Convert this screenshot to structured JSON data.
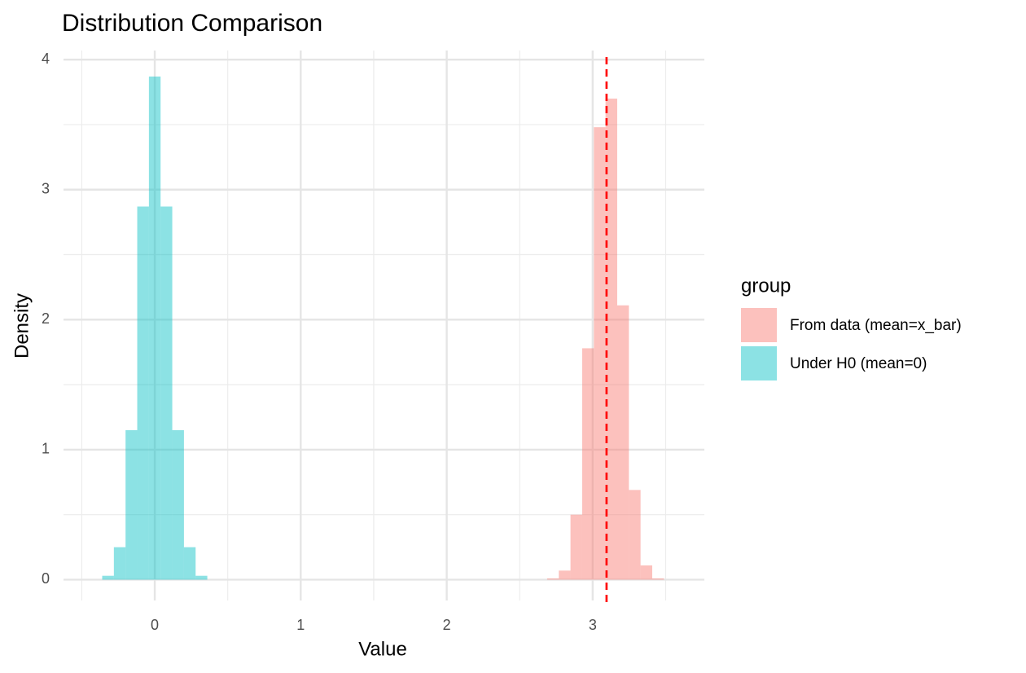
{
  "chart_data": {
    "type": "histogram",
    "title": "Distribution Comparison",
    "x_label": "Value",
    "y_label": "Density",
    "legend_title": "group",
    "legend_position": "right",
    "grid": true,
    "xlim": [
      -0.625,
      3.765
    ],
    "ylim": [
      -0.16,
      4.07
    ],
    "xticks": [
      0,
      1,
      2,
      3
    ],
    "yticks": [
      0,
      1,
      2,
      3,
      4
    ],
    "series": [
      {
        "name": "From data (mean=x_bar)",
        "color": "#F8766D",
        "bins": [
          2.688,
          2.768,
          2.848,
          2.928,
          3.008,
          3.088,
          3.168,
          3.248,
          3.328,
          3.408,
          3.488
        ],
        "values": [
          0.01,
          0.07,
          0.5,
          1.78,
          3.48,
          3.7,
          2.11,
          0.69,
          0.11,
          0.01
        ]
      },
      {
        "name": "Under H0 (mean=0)",
        "color": "#00BFC4",
        "bins": [
          -0.36,
          -0.28,
          -0.2,
          -0.12,
          -0.04,
          0.04,
          0.12,
          0.2,
          0.28,
          0.36
        ],
        "values": [
          0.03,
          0.25,
          1.15,
          2.87,
          3.87,
          2.87,
          1.15,
          0.25,
          0.03
        ]
      }
    ],
    "vline": {
      "value": 3.095,
      "color": "#FF0000",
      "style": "dashed"
    }
  }
}
